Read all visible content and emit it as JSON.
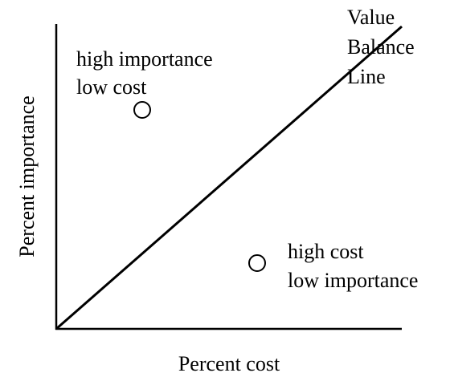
{
  "axes": {
    "x_label": "Percent cost",
    "y_label": "Percent importance"
  },
  "line_label": {
    "lines": [
      "Value",
      "Balance",
      "Line"
    ]
  },
  "points": [
    {
      "label_lines": [
        "high importance",
        "low cost"
      ]
    },
    {
      "label_lines": [
        "high cost",
        "low importance"
      ]
    }
  ]
}
